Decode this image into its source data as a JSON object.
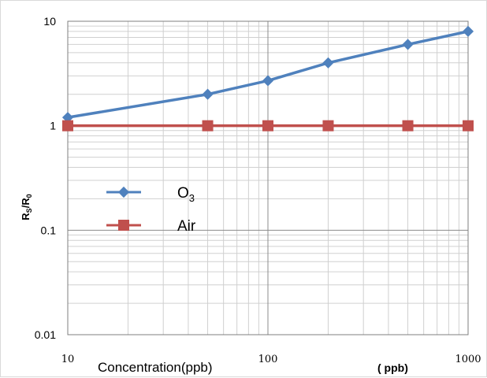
{
  "chart_data": {
    "type": "line",
    "xscale": "log",
    "yscale": "log",
    "xlim": [
      10,
      1000
    ],
    "ylim": [
      0.01,
      10
    ],
    "grid": true,
    "legend_placement": "center-left",
    "x_ticks": [
      "10",
      "100",
      "1000"
    ],
    "y_ticks": [
      "10",
      "1",
      "0.1",
      "0.01"
    ],
    "xlabel": "Concentration(ppb)",
    "x_unit": "( ppb)",
    "ylabel_main": "R",
    "ylabel_sub1": "S",
    "ylabel_mid": "/R",
    "ylabel_sub2": "0",
    "series": [
      {
        "name": "O3",
        "name_main": "O",
        "name_sub": "3",
        "color": "#4f81bd",
        "marker": "diamond",
        "x": [
          10,
          50,
          100,
          200,
          500,
          1000
        ],
        "y": [
          1.2,
          2.0,
          2.7,
          4.0,
          6.0,
          8.0
        ]
      },
      {
        "name": "Air",
        "name_main": "Air",
        "name_sub": "",
        "color": "#c0504d",
        "marker": "square",
        "x": [
          10,
          50,
          100,
          200,
          500,
          1000
        ],
        "y": [
          1.0,
          1.0,
          1.0,
          1.0,
          1.0,
          1.0
        ]
      }
    ]
  }
}
